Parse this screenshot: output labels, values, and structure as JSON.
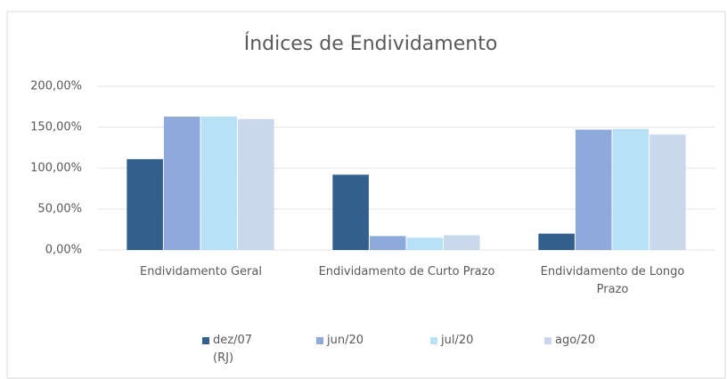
{
  "chart_data": {
    "type": "bar",
    "title": "Índices de Endividamento",
    "categories": [
      "Endividamento Geral",
      "Endividamento de Curto Prazo",
      "Endividamento de Longo Prazo"
    ],
    "series": [
      {
        "name": "dez/07 (RJ)",
        "color": "#335f8c",
        "values": [
          111,
          92,
          20
        ]
      },
      {
        "name": "jun/20",
        "color": "#8eaadb",
        "values": [
          163,
          17,
          147
        ]
      },
      {
        "name": "jul/20",
        "color": "#b8e1f8",
        "values": [
          163,
          15,
          148
        ]
      },
      {
        "name": "ago/20",
        "color": "#c9d8ec",
        "values": [
          160,
          18,
          141
        ]
      }
    ],
    "ylim": [
      0,
      200
    ],
    "yticks": [
      {
        "value": 0,
        "label": "0,00%"
      },
      {
        "value": 50,
        "label": "50,00%"
      },
      {
        "value": 100,
        "label": "100,00%"
      },
      {
        "value": 150,
        "label": "150,00%"
      },
      {
        "value": 200,
        "label": "200,00%"
      }
    ],
    "grid": true,
    "legend": "bottom"
  }
}
